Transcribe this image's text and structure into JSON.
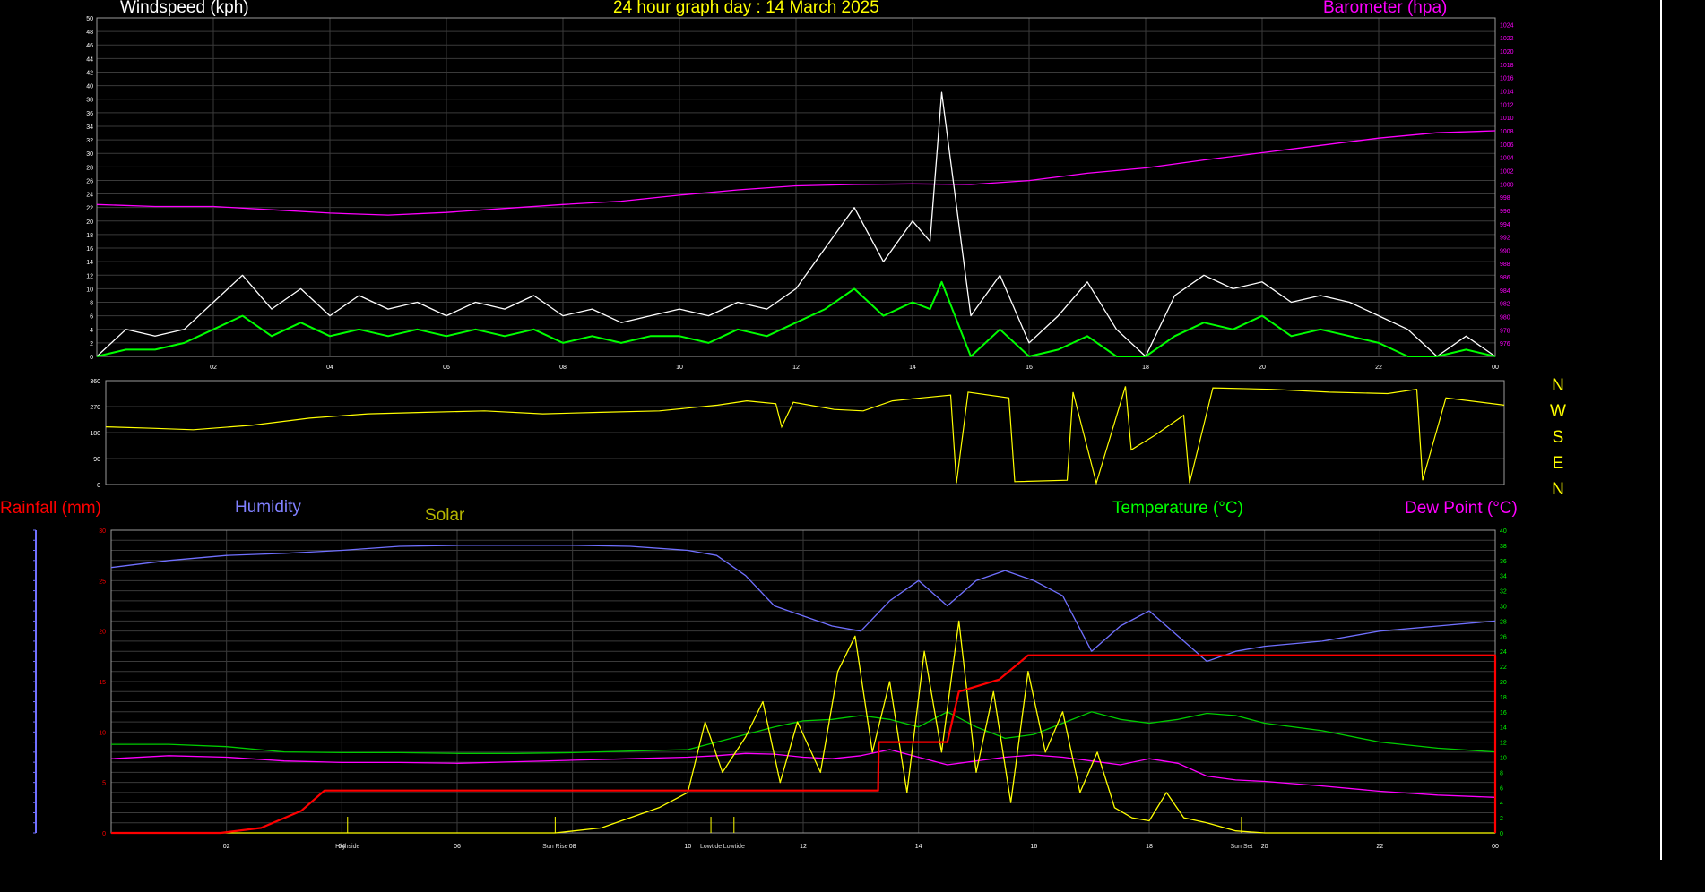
{
  "header": {
    "windspeed_label": "Windspeed (kph)",
    "title": "24 hour graph day : 14 March 2025",
    "barometer_label": "Barometer (hpa)"
  },
  "lower_labels": {
    "rainfall": "Rainfall (mm)",
    "humidity": "Humidity",
    "solar": "Solar",
    "temperature": "Temperature (°C)",
    "dewpoint": "Dew Point (°C)"
  },
  "compass": [
    "N",
    "W",
    "S",
    "E",
    "N"
  ],
  "colors": {
    "background": "#000000",
    "grid": "#3a3a3a",
    "wind_gust": "#ffffff",
    "wind_avg": "#00ff00",
    "barometer": "#ff00ff",
    "direction": "#ffff00",
    "rainfall": "#ff0000",
    "humidity": "#7070ff",
    "solar": "#ffff00",
    "temperature": "#00cc00",
    "dewpoint": "#ff00ff"
  },
  "chart_data": [
    {
      "type": "line",
      "panel": "wind",
      "xlim": [
        0,
        24
      ],
      "x_ticks": [
        "02",
        "04",
        "06",
        "08",
        "10",
        "12",
        "14",
        "16",
        "18",
        "20",
        "22",
        "00"
      ],
      "y_left_ticks": [
        "0",
        "2",
        "4",
        "6",
        "8",
        "10",
        "12",
        "14",
        "16",
        "18",
        "20",
        "22",
        "24",
        "26",
        "28",
        "30",
        "32",
        "34",
        "36",
        "38",
        "40",
        "42",
        "44",
        "46",
        "48",
        "50"
      ],
      "ylim_left": [
        0,
        50
      ],
      "y_right_ticks": [
        "976",
        "978",
        "980",
        "982",
        "984",
        "986",
        "988",
        "990",
        "992",
        "994",
        "996",
        "998",
        "1000",
        "1002",
        "1004",
        "1006",
        "1008",
        "1010",
        "1012",
        "1014",
        "1016",
        "1018",
        "1020",
        "1022",
        "1024"
      ],
      "ylim_right": [
        974,
        1025
      ],
      "grid": true,
      "series": [
        {
          "name": "Barometer (hpa)",
          "axis": "right",
          "x": [
            0,
            1,
            2,
            3,
            4,
            5,
            6,
            7,
            8,
            9,
            10,
            11,
            12,
            13,
            14,
            15,
            16,
            17,
            18,
            19,
            20,
            21,
            22,
            23,
            24
          ],
          "values": [
            996.9,
            996.6,
            996.6,
            996.1,
            995.6,
            995.3,
            995.7,
            996.3,
            996.9,
            997.4,
            998.3,
            999.1,
            999.7,
            999.9,
            1000.0,
            999.9,
            1000.5,
            1001.6,
            1002.4,
            1003.6,
            1004.7,
            1005.8,
            1006.9,
            1007.7,
            1008.0
          ]
        },
        {
          "axis": "left",
          "style": "gust",
          "x": [
            0,
            0.5,
            1,
            1.5,
            2,
            2.5,
            3,
            3.5,
            4,
            4.5,
            5,
            5.5,
            6,
            6.5,
            7,
            7.5,
            8,
            8.5,
            9,
            9.5,
            10,
            10.5,
            11,
            11.5,
            12,
            12.5,
            13,
            13.5,
            14,
            14.3,
            14.5,
            15,
            15.5,
            16,
            16.5,
            17,
            17.5,
            18,
            18.5,
            19,
            19.5,
            20,
            20.5,
            21,
            21.5,
            22,
            22.5,
            23,
            23.5,
            24
          ],
          "values": [
            0,
            4,
            3,
            4,
            8,
            12,
            7,
            10,
            6,
            9,
            7,
            8,
            6,
            8,
            7,
            9,
            6,
            7,
            5,
            6,
            7,
            6,
            8,
            7,
            10,
            16,
            22,
            14,
            20,
            17,
            39,
            6,
            12,
            2,
            6,
            11,
            4,
            0,
            9,
            12,
            10,
            11,
            8,
            9,
            8,
            6,
            4,
            0,
            3,
            0
          ]
        },
        {
          "axis": "left",
          "style": "average",
          "x": [
            0,
            0.5,
            1,
            1.5,
            2,
            2.5,
            3,
            3.5,
            4,
            4.5,
            5,
            5.5,
            6,
            6.5,
            7,
            7.5,
            8,
            8.5,
            9,
            9.5,
            10,
            10.5,
            11,
            11.5,
            12,
            12.5,
            13,
            13.5,
            14,
            14.3,
            14.5,
            15,
            15.5,
            16,
            16.5,
            17,
            17.5,
            18,
            18.5,
            19,
            19.5,
            20,
            20.5,
            21,
            21.5,
            22,
            22.5,
            23,
            23.5,
            24
          ],
          "values": [
            0,
            1,
            1,
            2,
            4,
            6,
            3,
            5,
            3,
            4,
            3,
            4,
            3,
            4,
            3,
            4,
            2,
            3,
            2,
            3,
            3,
            2,
            4,
            3,
            5,
            7,
            10,
            6,
            8,
            7,
            11,
            0,
            4,
            0,
            1,
            3,
            0,
            0,
            3,
            5,
            4,
            6,
            3,
            4,
            3,
            2,
            0,
            0,
            1,
            0
          ]
        }
      ]
    },
    {
      "type": "line",
      "panel": "wind-direction",
      "xlim": [
        0,
        24
      ],
      "y_ticks": [
        "0",
        "90",
        "180",
        "270",
        "360"
      ],
      "ylim": [
        0,
        360
      ],
      "grid": true,
      "series": [
        {
          "x": [
            0,
            0.8,
            1.5,
            2.5,
            3.5,
            4.5,
            5.5,
            6.5,
            7.5,
            8.5,
            9.5,
            10.5,
            11,
            11.5,
            11.6,
            11.8,
            12.5,
            13,
            13.5,
            14,
            14.5,
            14.6,
            14.8,
            15.5,
            15.6,
            16.5,
            16.6,
            17,
            17.5,
            17.6,
            18,
            18.5,
            18.6,
            19,
            20,
            21,
            22,
            22.5,
            22.6,
            23,
            24
          ],
          "values": [
            200,
            195,
            190,
            205,
            230,
            245,
            250,
            255,
            245,
            250,
            255,
            275,
            290,
            280,
            200,
            285,
            260,
            255,
            290,
            300,
            310,
            5,
            320,
            300,
            10,
            15,
            320,
            5,
            340,
            120,
            170,
            240,
            5,
            335,
            330,
            320,
            315,
            330,
            15,
            300,
            275
          ]
        }
      ]
    },
    {
      "type": "line",
      "panel": "temperature-humidity",
      "xlim": [
        0,
        24
      ],
      "x_ticks": [
        "02",
        "04",
        "06",
        "08",
        "10",
        "12",
        "14",
        "16",
        "18",
        "20",
        "22",
        "00"
      ],
      "annotations": [
        {
          "text": "Highside",
          "x": 4.1
        },
        {
          "text": "Sun Rise",
          "x": 7.7
        },
        {
          "text": "Lowtide",
          "x": 10.4
        },
        {
          "text": "Lowtide",
          "x": 10.8
        },
        {
          "text": "Sun Set",
          "x": 19.6
        }
      ],
      "y_left_ticks": [
        "0",
        "5",
        "10",
        "15",
        "20",
        "25",
        "30"
      ],
      "ylim_left": [
        0,
        30
      ],
      "y_right_ticks": [
        "0",
        "2",
        "4",
        "6",
        "8",
        "10",
        "12",
        "14",
        "16",
        "18",
        "20",
        "22",
        "24",
        "26",
        "28",
        "30",
        "32",
        "34",
        "36",
        "38",
        "40"
      ],
      "ylim_right": [
        0,
        40
      ],
      "grid": true,
      "series": [
        {
          "name": "Rainfall (mm)",
          "axis": "left",
          "x": [
            0,
            1.9,
            2.6,
            3.3,
            3.7,
            13.3,
            13.31,
            14.5,
            14.7,
            15.4,
            15.9,
            24,
            24
          ],
          "values": [
            0,
            0,
            0.5,
            2.2,
            4.2,
            4.2,
            9.0,
            9.0,
            14.0,
            15.2,
            17.6,
            17.6,
            0
          ]
        },
        {
          "name": "Humidity",
          "axis": "left",
          "x": [
            0,
            1,
            2,
            3,
            4,
            5,
            6,
            7,
            8,
            9,
            10,
            10.5,
            11,
            11.5,
            12,
            12.5,
            13,
            13.5,
            14,
            14.5,
            15,
            15.5,
            16,
            16.5,
            17,
            17.5,
            18,
            18.5,
            19,
            19.5,
            20,
            21,
            22,
            23,
            24
          ],
          "values": [
            26.3,
            27.0,
            27.5,
            27.7,
            28.0,
            28.4,
            28.5,
            28.5,
            28.5,
            28.4,
            28.0,
            27.5,
            25.5,
            22.5,
            21.5,
            20.5,
            20.0,
            23.0,
            25.0,
            22.5,
            25.0,
            26.0,
            25.0,
            23.5,
            18.0,
            20.5,
            22.0,
            19.5,
            17.0,
            18.0,
            18.5,
            19.0,
            20.0,
            20.5,
            21.0
          ]
        },
        {
          "name": "Temperature (°C)",
          "axis": "right",
          "x": [
            0,
            1,
            2,
            3,
            4,
            5,
            6,
            7,
            8,
            9,
            10,
            10.5,
            11,
            11.5,
            12,
            12.5,
            13,
            13.5,
            14,
            14.5,
            15,
            15.5,
            16,
            16.5,
            17,
            17.5,
            18,
            18.5,
            19,
            19.5,
            20,
            21,
            22,
            23,
            24
          ],
          "values": [
            11.7,
            11.7,
            11.4,
            10.7,
            10.6,
            10.6,
            10.5,
            10.5,
            10.6,
            10.8,
            11.0,
            12.0,
            13.0,
            14.0,
            14.8,
            15.0,
            15.5,
            15.0,
            14.0,
            16.0,
            14.0,
            12.5,
            13.0,
            14.5,
            16.0,
            15.0,
            14.5,
            15.0,
            15.8,
            15.5,
            14.5,
            13.5,
            12.0,
            11.2,
            10.7
          ]
        },
        {
          "name": "Dew Point (°C)",
          "axis": "right",
          "x": [
            0,
            1,
            2,
            3,
            4,
            5,
            6,
            7,
            8,
            9,
            10,
            10.5,
            11,
            11.5,
            12,
            12.5,
            13,
            13.5,
            14,
            14.5,
            15,
            15.5,
            16,
            16.5,
            17,
            17.5,
            18,
            18.5,
            19,
            19.5,
            20,
            21,
            22,
            23,
            24
          ],
          "values": [
            9.8,
            10.2,
            10.0,
            9.5,
            9.3,
            9.3,
            9.2,
            9.4,
            9.6,
            9.8,
            10.0,
            10.2,
            10.5,
            10.4,
            10.0,
            9.8,
            10.2,
            11.0,
            10.0,
            9.0,
            9.5,
            10.0,
            10.3,
            10.0,
            9.5,
            9.0,
            9.8,
            9.2,
            7.5,
            7.0,
            6.8,
            6.2,
            5.5,
            5.0,
            4.7
          ]
        },
        {
          "name": "Solar",
          "axis": "left",
          "x": [
            0,
            7.7,
            8.5,
            9.5,
            10.0,
            10.3,
            10.6,
            11.0,
            11.3,
            11.6,
            11.9,
            12.3,
            12.6,
            12.9,
            13.2,
            13.5,
            13.8,
            14.1,
            14.4,
            14.7,
            15.0,
            15.3,
            15.6,
            15.9,
            16.2,
            16.5,
            16.8,
            17.1,
            17.4,
            17.7,
            18.0,
            18.3,
            18.6,
            19.0,
            19.5,
            20,
            24
          ],
          "values": [
            0,
            0,
            0.5,
            2.5,
            4.0,
            11.0,
            6.0,
            9.5,
            13.0,
            5.0,
            11.0,
            6.0,
            16.0,
            19.5,
            8.0,
            15.0,
            4.0,
            18.0,
            8.0,
            21.0,
            6.0,
            14.0,
            3.0,
            16.0,
            8.0,
            12.0,
            4.0,
            8.0,
            2.5,
            1.5,
            1.2,
            4.0,
            1.5,
            1.0,
            0.2,
            0,
            0
          ]
        }
      ]
    }
  ]
}
